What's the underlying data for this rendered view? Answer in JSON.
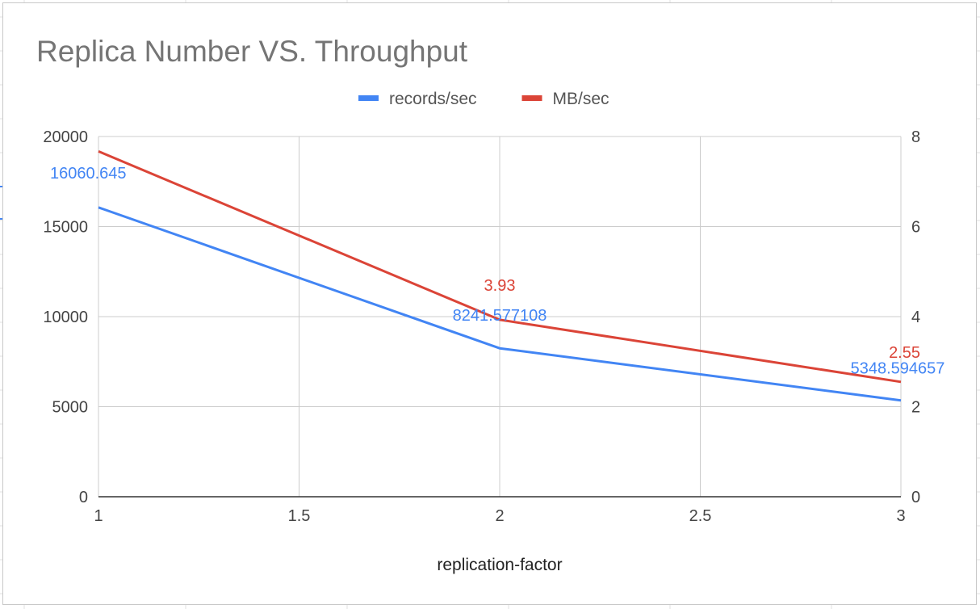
{
  "chart_data": {
    "type": "line",
    "title": "Replica Number VS. Throughput",
    "xlabel": "replication-factor",
    "ylabel": "",
    "y2label": "",
    "x": [
      1,
      2,
      3
    ],
    "x_ticks": [
      "1",
      "1.5",
      "2",
      "2.5",
      "3"
    ],
    "x_tick_values": [
      1,
      1.5,
      2,
      2.5,
      3
    ],
    "xlim": [
      1,
      3
    ],
    "y_ticks": [
      "0",
      "5000",
      "10000",
      "15000",
      "20000"
    ],
    "y_tick_values": [
      0,
      5000,
      10000,
      15000,
      20000
    ],
    "ylim": [
      0,
      20000
    ],
    "y2_ticks": [
      "0",
      "2",
      "4",
      "6",
      "8"
    ],
    "y2_tick_values": [
      0,
      2,
      4,
      6,
      8
    ],
    "y2lim": [
      0,
      8
    ],
    "grid": true,
    "legend_position": "top",
    "series": [
      {
        "name": "records/sec",
        "axis": "left",
        "color": "#4285f4",
        "values": [
          16060.645,
          8241.577108,
          5348.594657
        ],
        "labels": [
          "16060.645",
          "8241.577108",
          "5348.594657"
        ]
      },
      {
        "name": "MB/sec",
        "axis": "right",
        "color": "#db4437",
        "values": [
          7.67,
          3.93,
          2.55
        ],
        "labels": [
          "",
          "3.93",
          "2.55"
        ]
      }
    ]
  }
}
